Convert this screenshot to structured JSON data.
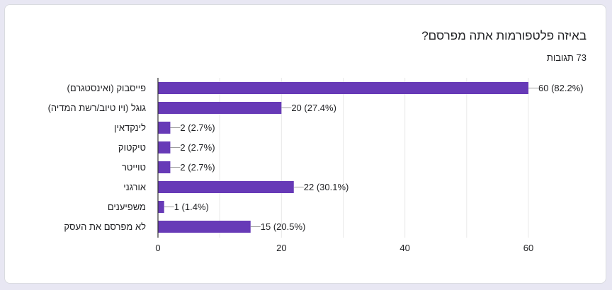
{
  "question": {
    "title": "באיזה פלטפורמות אתה מפרסם?",
    "responses": "73 תגובות"
  },
  "colors": {
    "bar": "#673ab7",
    "grid": "#e8e8e8",
    "axis": "#333333",
    "background": "#e8e7f3"
  },
  "chart_data": {
    "type": "bar",
    "orientation": "horizontal",
    "categories": [
      "(פייסבוק (ואינסטגרם",
      "(גוגל (ויו טיוב/רשת המדיה",
      "לינקדאין",
      "טיקטוק",
      "טוייטר",
      "אורגני",
      "משפיענים",
      "לא מפרסם את העסק"
    ],
    "values": [
      60,
      20,
      2,
      2,
      2,
      22,
      1,
      15
    ],
    "value_labels": [
      "60 (82.2%)",
      "20 (27.4%)",
      "2 (2.7%)",
      "2 (2.7%)",
      "2 (2.7%)",
      "22 (30.1%)",
      "1 (1.4%)",
      "15 (20.5%)"
    ],
    "xlim": [
      0,
      60
    ],
    "xticks": [
      "0",
      "20",
      "40",
      "60"
    ],
    "grid": true
  }
}
